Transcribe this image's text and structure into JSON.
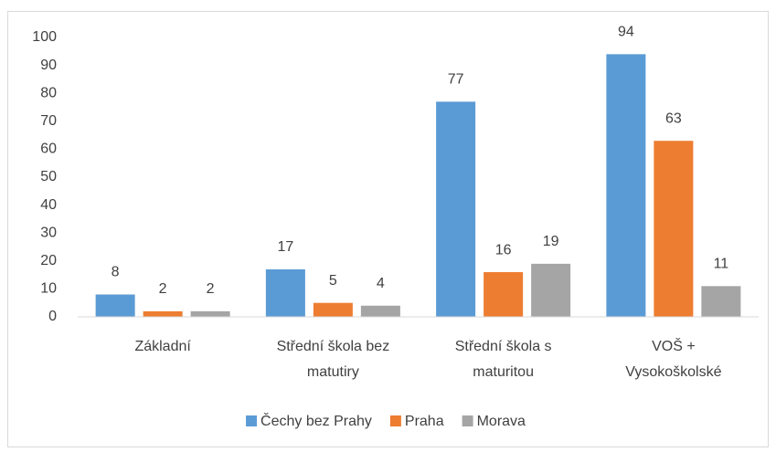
{
  "chart_data": {
    "type": "bar",
    "categories": [
      "Základní",
      "Střední škola bez matutiry",
      "Střední škola s maturitou",
      "VOŠ + Vysokoškolské"
    ],
    "series": [
      {
        "name": "Čechy bez Prahy",
        "color": "#5b9bd5",
        "values": [
          8,
          17,
          77,
          94
        ]
      },
      {
        "name": "Praha",
        "color": "#ed7d31",
        "values": [
          2,
          5,
          16,
          63
        ]
      },
      {
        "name": "Morava",
        "color": "#a5a5a5",
        "values": [
          2,
          4,
          19,
          11
        ]
      }
    ],
    "ylim": [
      0,
      100
    ],
    "yticks": [
      0,
      10,
      20,
      30,
      40,
      50,
      60,
      70,
      80,
      90,
      100
    ],
    "grid": false,
    "legend": "bottom"
  }
}
